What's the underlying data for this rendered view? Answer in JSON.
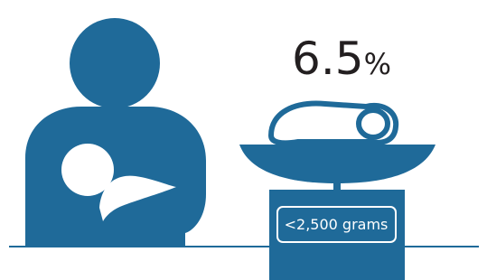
{
  "stat": {
    "value": 6.5,
    "unit": "%"
  },
  "scale_label": "<2,500 grams"
}
